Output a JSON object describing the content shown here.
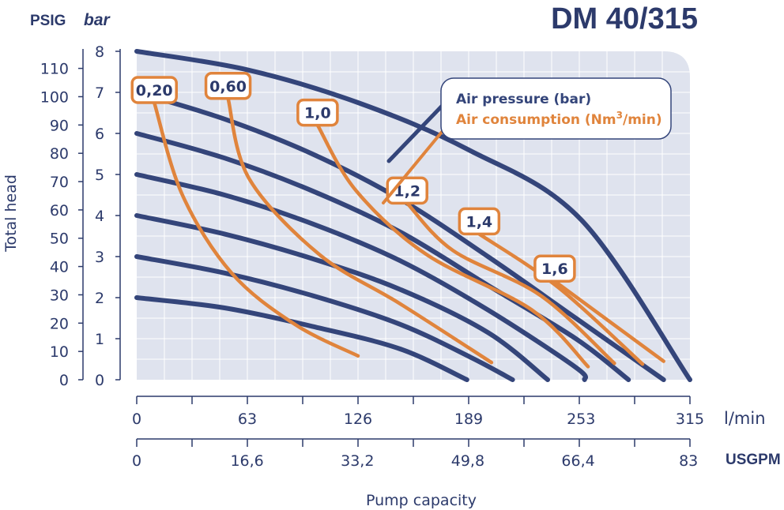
{
  "chart_data": {
    "type": "line",
    "title": "DM 40/315",
    "y_left_unit": "PSIG",
    "y_right_unit": "bar",
    "ylabel": "Total head",
    "xlabel": "Pump capacity",
    "x_unit_lmin": "l/min",
    "x_unit_usgpm": "USGPM",
    "psig_ticks": [
      "110",
      "100",
      "90",
      "80",
      "70",
      "60",
      "50",
      "40",
      "30",
      "20",
      "10",
      "0"
    ],
    "psig_values": [
      110,
      100,
      90,
      80,
      70,
      60,
      50,
      40,
      30,
      20,
      10,
      0
    ],
    "bar_ticks": [
      "8",
      "7",
      "6",
      "5",
      "4",
      "3",
      "2",
      "1",
      "0"
    ],
    "bar_values": [
      8,
      7,
      6,
      5,
      4,
      3,
      2,
      1,
      0
    ],
    "ylim_bar": [
      0,
      8
    ],
    "x_ticks_lmin": [
      "0",
      "63",
      "126",
      "189",
      "253",
      "315"
    ],
    "x_values_lmin": [
      0,
      63,
      126,
      189,
      253,
      315
    ],
    "x_ticks_usgpm": [
      "0",
      "16,6",
      "33,2",
      "49,8",
      "66,4",
      "83"
    ],
    "x_values_usgpm": [
      0,
      16.6,
      33.2,
      49.8,
      66.4,
      83
    ],
    "xlim_lmin": [
      0,
      315
    ],
    "legend": {
      "air_pressure": "Air pressure (bar)",
      "air_consumption_prefix": "Air consumption (Nm",
      "air_consumption_sup": "3",
      "air_consumption_suffix": "/min)"
    },
    "colors": {
      "pressure": "#34457a",
      "consumption": "#e0843c",
      "plot_bg": "#dfe3ee",
      "grid": "#ffffff",
      "text": "#2c3a6b"
    },
    "series_pressure": [
      {
        "name": "8 bar",
        "points": [
          [
            0,
            8
          ],
          [
            63,
            7.55
          ],
          [
            126,
            6.75
          ],
          [
            189,
            5.6
          ],
          [
            253,
            3.9
          ],
          [
            315,
            0
          ]
        ]
      },
      {
        "name": "7 bar",
        "points": [
          [
            0,
            7
          ],
          [
            50,
            6.35
          ],
          [
            100,
            5.5
          ],
          [
            150,
            4.4
          ],
          [
            200,
            3
          ],
          [
            250,
            1.5
          ],
          [
            300,
            0
          ]
        ]
      },
      {
        "name": "6 bar",
        "points": [
          [
            0,
            6
          ],
          [
            50,
            5.4
          ],
          [
            100,
            4.6
          ],
          [
            150,
            3.6
          ],
          [
            200,
            2.3
          ],
          [
            250,
            1
          ],
          [
            280,
            0
          ]
        ]
      },
      {
        "name": "5 bar",
        "points": [
          [
            0,
            5
          ],
          [
            50,
            4.5
          ],
          [
            100,
            3.8
          ],
          [
            150,
            2.9
          ],
          [
            200,
            1.7
          ],
          [
            250,
            0.3
          ],
          [
            255,
            0
          ]
        ]
      },
      {
        "name": "4 bar",
        "points": [
          [
            0,
            4
          ],
          [
            50,
            3.55
          ],
          [
            100,
            2.95
          ],
          [
            150,
            2.2
          ],
          [
            200,
            1.15
          ],
          [
            234,
            0
          ]
        ]
      },
      {
        "name": "3 bar",
        "points": [
          [
            0,
            3
          ],
          [
            50,
            2.6
          ],
          [
            100,
            2.05
          ],
          [
            150,
            1.35
          ],
          [
            190,
            0.55
          ],
          [
            214,
            0
          ]
        ]
      },
      {
        "name": "2 bar",
        "points": [
          [
            0,
            2
          ],
          [
            50,
            1.75
          ],
          [
            100,
            1.3
          ],
          [
            150,
            0.75
          ],
          [
            188,
            0
          ]
        ]
      }
    ],
    "series_consumption": [
      {
        "name": "0,20",
        "label": "0,20",
        "points": [
          [
            10,
            6.75
          ],
          [
            26,
            4.5
          ],
          [
            54,
            2.6
          ],
          [
            90,
            1.35
          ],
          [
            126,
            0.58
          ]
        ]
      },
      {
        "name": "0,60",
        "label": "0,60",
        "points": [
          [
            52,
            6.85
          ],
          [
            64,
            4.9
          ],
          [
            104,
            3.05
          ],
          [
            150,
            1.85
          ],
          [
            202,
            0.42
          ]
        ]
      },
      {
        "name": "1,0",
        "label": "1,0",
        "points": [
          [
            103,
            6.2
          ],
          [
            125,
            4.6
          ],
          [
            165,
            3.05
          ],
          [
            225,
            1.7
          ],
          [
            257,
            0.32
          ]
        ]
      },
      {
        "name": "1,2",
        "label": "1,2",
        "points": [
          [
            154,
            4.3
          ],
          [
            180,
            3.15
          ],
          [
            230,
            2.05
          ],
          [
            272,
            0.4
          ]
        ]
      },
      {
        "name": "1,4",
        "label": "1,4",
        "points": [
          [
            195,
            3.55
          ],
          [
            240,
            2.25
          ],
          [
            288,
            0.38
          ]
        ]
      },
      {
        "name": "1,6",
        "label": "1,6",
        "points": [
          [
            238,
            2.4
          ],
          [
            300,
            0.45
          ]
        ]
      }
    ]
  }
}
